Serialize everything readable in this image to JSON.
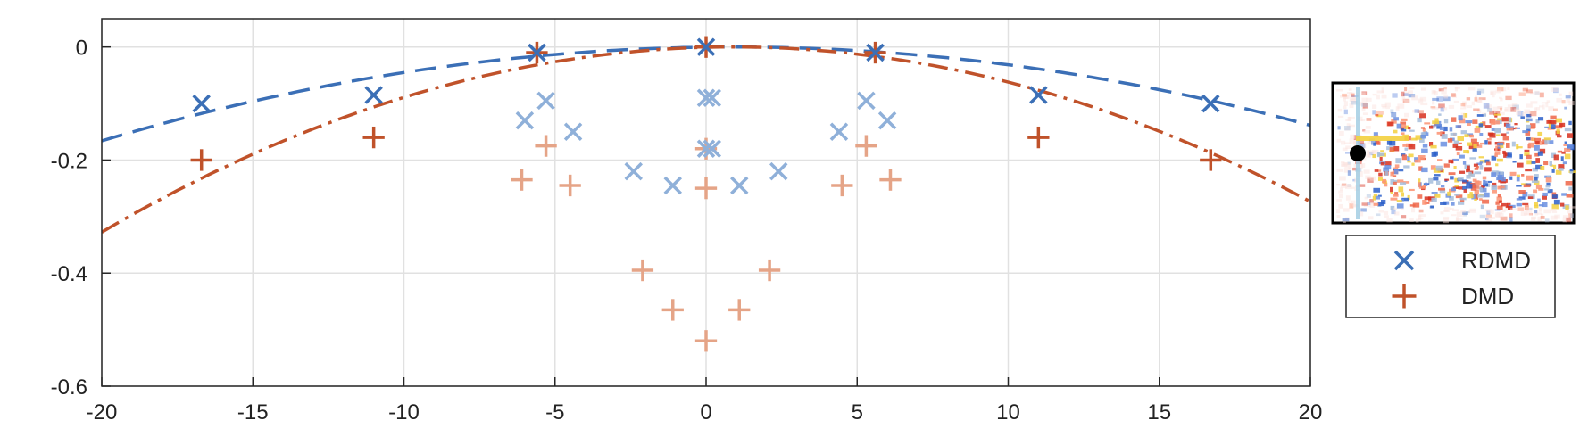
{
  "chart_data": {
    "type": "scatter",
    "xlim": [
      -20,
      20
    ],
    "ylim": [
      -0.6,
      0.05
    ],
    "x_ticks": [
      -20,
      -15,
      -10,
      -5,
      0,
      5,
      10,
      15,
      20
    ],
    "x_tick_labels": [
      "-20",
      "-15",
      "-10",
      "-5",
      "0",
      "5",
      "10",
      "15",
      "20"
    ],
    "y_ticks": [
      0,
      -0.2,
      -0.4,
      -0.6
    ],
    "y_tick_labels": [
      "0",
      "-0.2",
      "-0.4",
      "-0.6"
    ],
    "grid": true,
    "legend_position": "right",
    "series": [
      {
        "name": "RDMD",
        "marker": "x",
        "color": "#3b6fb6",
        "color_light": "#8fb0d9",
        "points_primary": [
          [
            -16.7,
            -0.1
          ],
          [
            -11.0,
            -0.085
          ],
          [
            -5.6,
            -0.01
          ],
          [
            0.0,
            0.0
          ],
          [
            5.6,
            -0.01
          ],
          [
            11.0,
            -0.085
          ],
          [
            16.7,
            -0.1
          ]
        ],
        "points_secondary": [
          [
            -6.0,
            -0.13
          ],
          [
            -5.3,
            -0.095
          ],
          [
            -4.4,
            -0.15
          ],
          [
            -2.4,
            -0.22
          ],
          [
            -1.1,
            -0.245
          ],
          [
            0.0,
            -0.09
          ],
          [
            0.2,
            -0.09
          ],
          [
            0.0,
            -0.18
          ],
          [
            0.2,
            -0.18
          ],
          [
            1.1,
            -0.245
          ],
          [
            2.4,
            -0.22
          ],
          [
            4.4,
            -0.15
          ],
          [
            5.3,
            -0.095
          ],
          [
            6.0,
            -0.13
          ]
        ],
        "fit_curve": {
          "style": "dashed",
          "vertex_x": 0.9,
          "vertex_y": 0.0,
          "a": -0.00038
        }
      },
      {
        "name": "DMD",
        "marker": "+",
        "color": "#c0522a",
        "color_light": "#e5a487",
        "points_primary": [
          [
            -16.7,
            -0.2
          ],
          [
            -11.0,
            -0.16
          ],
          [
            -5.6,
            -0.01
          ],
          [
            0.0,
            0.0
          ],
          [
            5.6,
            -0.01
          ],
          [
            11.0,
            -0.16
          ],
          [
            16.7,
            -0.2
          ]
        ],
        "points_secondary": [
          [
            -6.1,
            -0.235
          ],
          [
            -5.3,
            -0.175
          ],
          [
            -4.5,
            -0.245
          ],
          [
            0.0,
            -0.18
          ],
          [
            0.0,
            -0.25
          ],
          [
            5.3,
            -0.175
          ],
          [
            4.5,
            -0.245
          ],
          [
            6.1,
            -0.235
          ],
          [
            -2.1,
            -0.395
          ],
          [
            2.1,
            -0.395
          ],
          [
            -1.1,
            -0.465
          ],
          [
            1.1,
            -0.465
          ],
          [
            0.0,
            -0.52
          ]
        ],
        "fit_curve": {
          "style": "dash-dot",
          "vertex_x": 0.9,
          "vertex_y": 0.0,
          "a": -0.00075
        }
      }
    ]
  },
  "legend": {
    "items": [
      {
        "label": "RDMD",
        "marker": "x",
        "color": "#3b6fb6"
      },
      {
        "label": "DMD",
        "marker": "+",
        "color": "#c0522a"
      }
    ]
  },
  "inset": {
    "icon": "flow-field-thumbnail",
    "dot_color": "#000000"
  }
}
